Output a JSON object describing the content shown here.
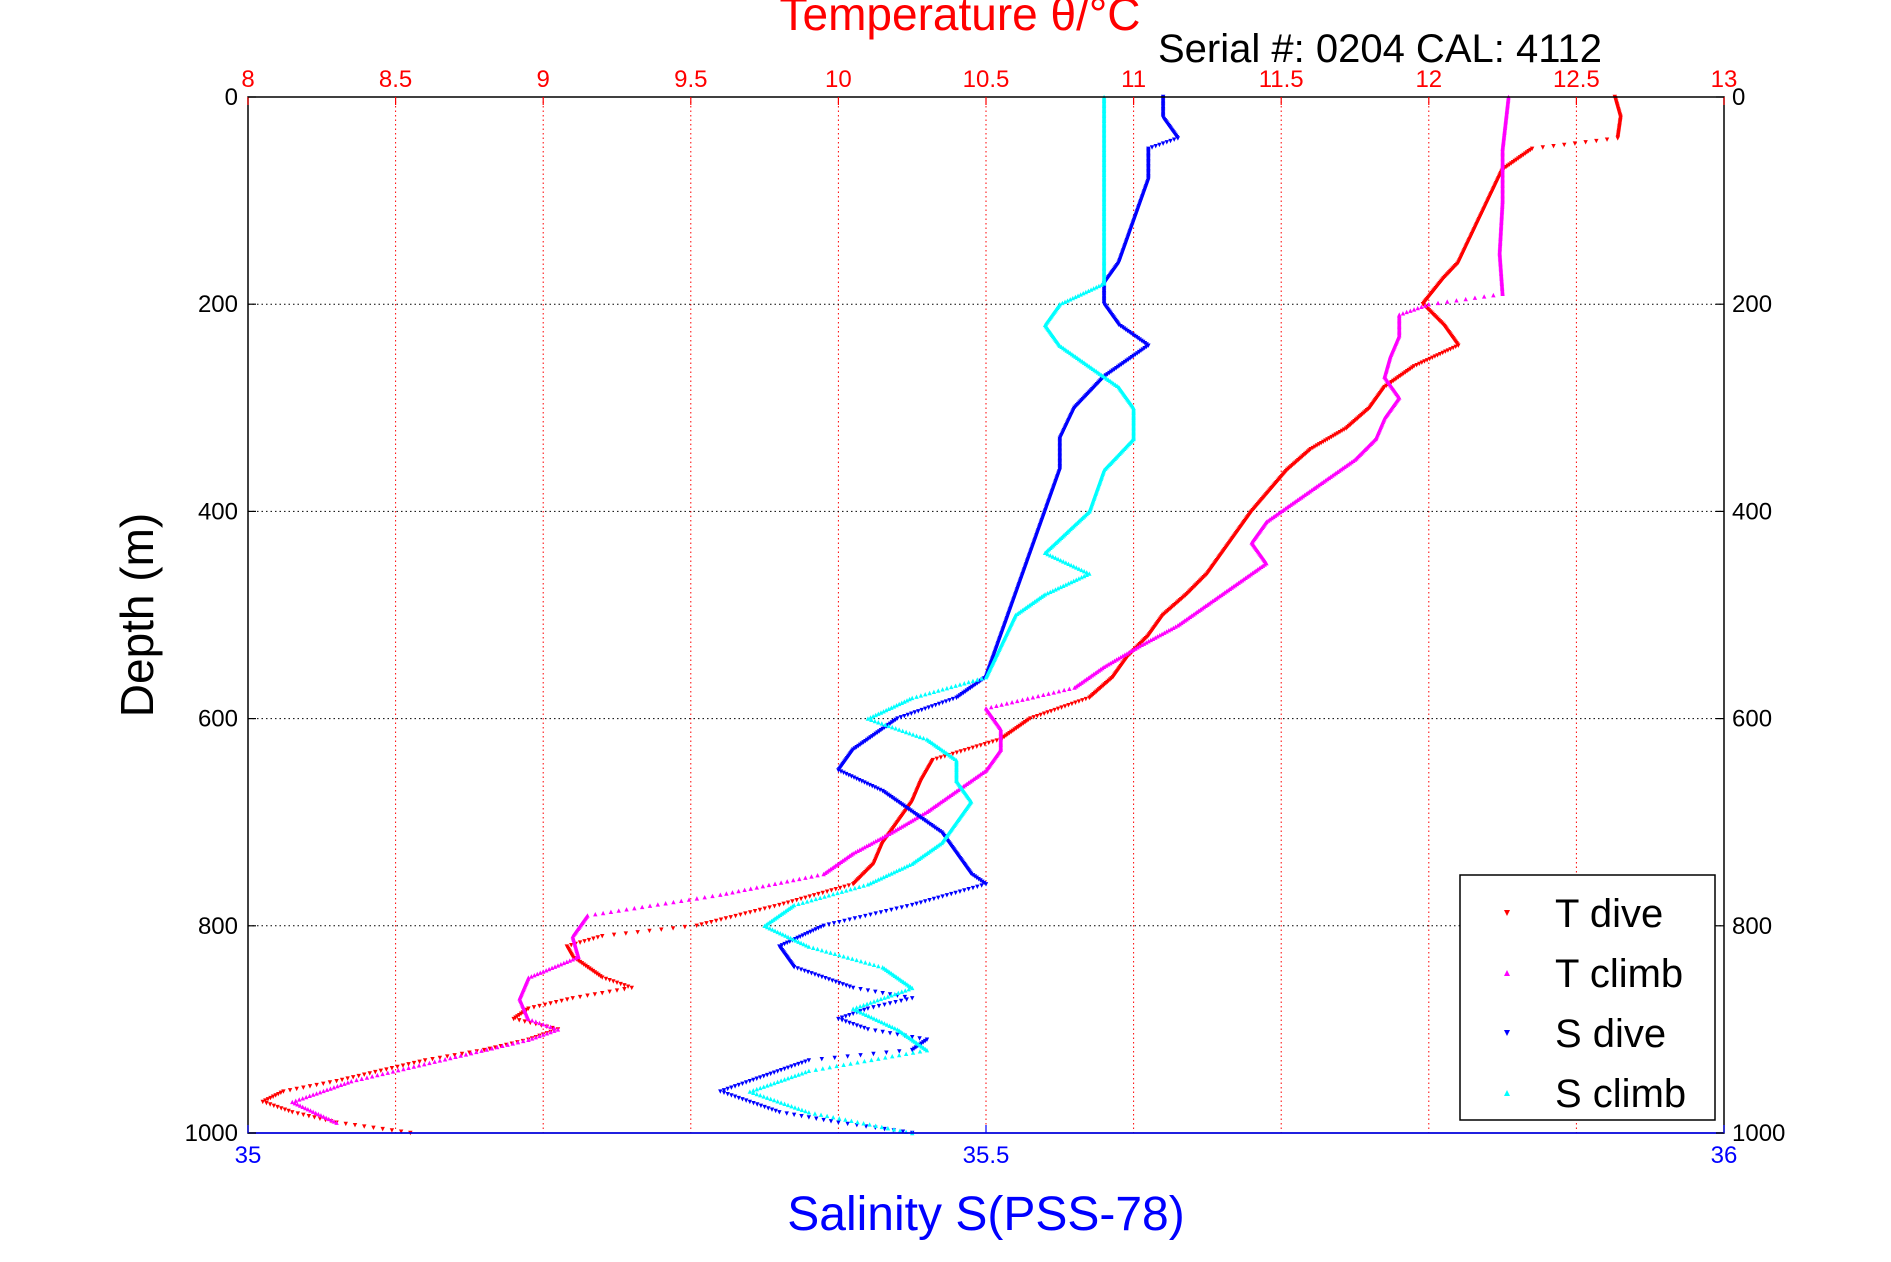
{
  "chart_data": {
    "type": "scatter",
    "title": "Temperature θ/°C",
    "subtitle": "Serial #: 0204  CAL: 4112",
    "xlabel": "Salinity S(PSS-78)",
    "ylabel": "Depth (m)",
    "top_axis": {
      "label": "Temperature θ/°C",
      "range": [
        8,
        13
      ],
      "ticks": [
        "8",
        "8.5",
        "9",
        "9.5",
        "10",
        "10.5",
        "11",
        "11.5",
        "12",
        "12.5",
        "13"
      ]
    },
    "bottom_axis": {
      "label": "Salinity S(PSS-78)",
      "range": [
        35,
        36
      ],
      "ticks": [
        "35",
        "35.5",
        "36"
      ]
    },
    "y_axis": {
      "label": "Depth (m)",
      "range": [
        0,
        1000
      ],
      "reversed": true,
      "ticks": [
        "0",
        "200",
        "400",
        "600",
        "800",
        "1000"
      ]
    },
    "grid": true,
    "legend_position": "bottom-right",
    "series": [
      {
        "name": "T dive",
        "axis": "temperature",
        "color": "#ff0000",
        "marker": "triangle-down",
        "depth": [
          0,
          20,
          40,
          50,
          70,
          100,
          130,
          160,
          175,
          200,
          220,
          240,
          260,
          280,
          300,
          320,
          340,
          360,
          380,
          400,
          420,
          440,
          460,
          480,
          500,
          520,
          540,
          560,
          580,
          600,
          620,
          640,
          660,
          680,
          700,
          720,
          740,
          760,
          780,
          800,
          810,
          820,
          830,
          840,
          850,
          860,
          870,
          880,
          890,
          900,
          910,
          920,
          930,
          940,
          950,
          960,
          970,
          980,
          990,
          1000
        ],
        "values": [
          12.63,
          12.65,
          12.64,
          12.35,
          12.25,
          12.2,
          12.15,
          12.1,
          12.05,
          11.98,
          12.05,
          12.1,
          11.95,
          11.85,
          11.8,
          11.72,
          11.6,
          11.52,
          11.46,
          11.4,
          11.35,
          11.3,
          11.25,
          11.18,
          11.1,
          11.05,
          10.98,
          10.93,
          10.85,
          10.65,
          10.55,
          10.32,
          10.28,
          10.25,
          10.2,
          10.15,
          10.12,
          10.05,
          9.8,
          9.52,
          9.2,
          9.08,
          9.1,
          9.15,
          9.2,
          9.3,
          9.1,
          8.95,
          8.9,
          9.05,
          8.95,
          8.8,
          8.6,
          8.45,
          8.3,
          8.12,
          8.05,
          8.15,
          8.3,
          8.55
        ]
      },
      {
        "name": "T climb",
        "axis": "temperature",
        "color": "#ff00ff",
        "marker": "triangle-up",
        "depth": [
          0,
          50,
          100,
          150,
          190,
          200,
          210,
          230,
          250,
          270,
          290,
          310,
          330,
          350,
          370,
          390,
          410,
          430,
          450,
          470,
          490,
          510,
          530,
          550,
          570,
          590,
          610,
          630,
          650,
          670,
          690,
          710,
          730,
          750,
          770,
          790,
          810,
          830,
          850,
          870,
          890,
          900,
          910,
          930,
          950,
          970,
          990
        ],
        "values": [
          12.27,
          12.25,
          12.25,
          12.24,
          12.25,
          12.0,
          11.9,
          11.9,
          11.87,
          11.85,
          11.9,
          11.85,
          11.82,
          11.75,
          11.65,
          11.55,
          11.45,
          11.4,
          11.45,
          11.35,
          11.25,
          11.15,
          11.02,
          10.9,
          10.8,
          10.5,
          10.55,
          10.55,
          10.5,
          10.4,
          10.3,
          10.18,
          10.05,
          9.95,
          9.6,
          9.15,
          9.1,
          9.12,
          8.95,
          8.92,
          8.95,
          9.05,
          8.95,
          8.65,
          8.35,
          8.15,
          8.3
        ]
      },
      {
        "name": "S dive",
        "axis": "salinity",
        "color": "#0000ff",
        "marker": "triangle-down",
        "depth": [
          0,
          20,
          40,
          50,
          80,
          120,
          160,
          180,
          200,
          220,
          240,
          250,
          270,
          300,
          330,
          360,
          400,
          440,
          480,
          520,
          560,
          580,
          600,
          610,
          630,
          650,
          670,
          690,
          710,
          730,
          750,
          760,
          780,
          800,
          820,
          840,
          860,
          870,
          880,
          890,
          900,
          910,
          920,
          930,
          950,
          960,
          970,
          980,
          990,
          1000
        ],
        "values": [
          35.62,
          35.62,
          35.63,
          35.61,
          35.61,
          35.6,
          35.59,
          35.58,
          35.58,
          35.59,
          35.61,
          35.6,
          35.58,
          35.56,
          35.55,
          35.55,
          35.54,
          35.53,
          35.52,
          35.51,
          35.5,
          35.48,
          35.44,
          35.43,
          35.41,
          35.4,
          35.43,
          35.45,
          35.47,
          35.48,
          35.49,
          35.5,
          35.45,
          35.39,
          35.36,
          35.37,
          35.41,
          35.45,
          35.42,
          35.4,
          35.42,
          35.46,
          35.45,
          35.38,
          35.34,
          35.32,
          35.34,
          35.36,
          35.4,
          35.45
        ]
      },
      {
        "name": "S climb",
        "axis": "salinity",
        "color": "#00ffff",
        "marker": "triangle-up",
        "depth": [
          0,
          40,
          80,
          120,
          160,
          180,
          200,
          220,
          240,
          260,
          280,
          300,
          330,
          360,
          400,
          440,
          460,
          480,
          500,
          530,
          560,
          580,
          600,
          620,
          640,
          660,
          680,
          700,
          720,
          740,
          760,
          780,
          800,
          820,
          840,
          860,
          880,
          900,
          920,
          940,
          960,
          980,
          1000
        ],
        "values": [
          35.58,
          35.58,
          35.58,
          35.58,
          35.58,
          35.58,
          35.55,
          35.54,
          35.55,
          35.57,
          35.59,
          35.6,
          35.6,
          35.58,
          35.57,
          35.54,
          35.57,
          35.54,
          35.52,
          35.51,
          35.5,
          35.45,
          35.42,
          35.46,
          35.48,
          35.48,
          35.49,
          35.48,
          35.47,
          35.45,
          35.42,
          35.37,
          35.35,
          35.38,
          35.43,
          35.45,
          35.41,
          35.44,
          35.46,
          35.38,
          35.34,
          35.38,
          35.45
        ]
      }
    ]
  }
}
